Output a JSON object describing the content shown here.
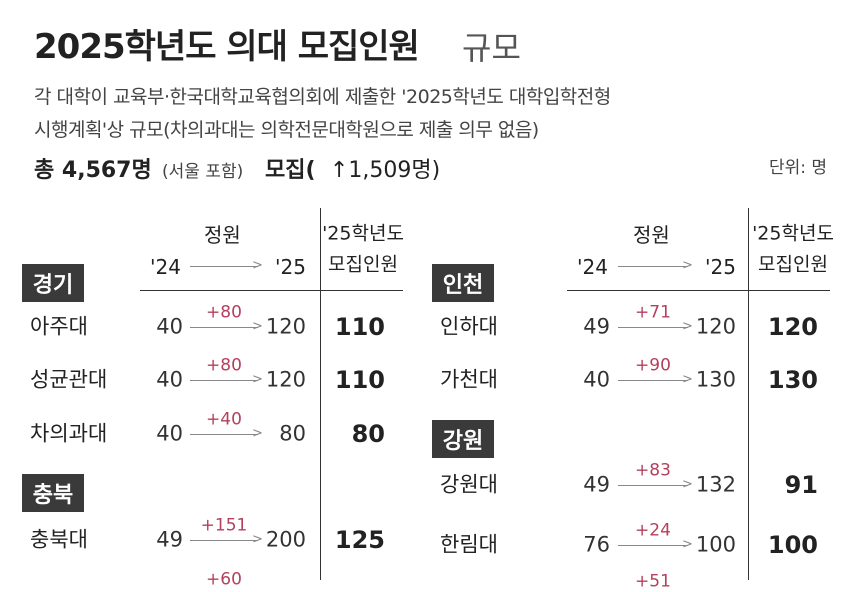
{
  "title": {
    "main": "2025학년도 의대 모집인원",
    "suffix": "규모"
  },
  "description": [
    "각 대학이 교육부·한국대학교육협의회에 제출한 '2025학년도 대학입학전형",
    "시행계획'상 규모(차의과대는 의학전문대학원으로 제출 의무 없음)"
  ],
  "summary": {
    "total": "총 4,567명",
    "note": "(서울 포함)",
    "label": "모집(",
    "increase": "↑1,509명)"
  },
  "unit": "단위: 명",
  "tables": [
    {
      "header": {
        "capacity": "정원",
        "from": "'24",
        "to": "'25",
        "quota": [
          "'25학년도",
          "모집인원"
        ]
      },
      "groups": [
        {
          "region": "경기",
          "rows": [
            {
              "school": "아주대",
              "from": 40,
              "change": "+80",
              "to": 120,
              "quota": 110
            },
            {
              "school": "성균관대",
              "from": 40,
              "change": "+80",
              "to": 120,
              "quota": 110
            },
            {
              "school": "차의과대",
              "from": 40,
              "change": "+40",
              "to": 80,
              "quota": 80
            }
          ]
        },
        {
          "region": "충북",
          "rows": [
            {
              "school": "충북대",
              "from": 49,
              "change": "+151",
              "to": 200,
              "quota": 125
            }
          ]
        }
      ],
      "cut_off_change": "+60"
    },
    {
      "header": {
        "capacity": "정원",
        "from": "'24",
        "to": "'25",
        "quota": [
          "'25학년도",
          "모집인원"
        ]
      },
      "groups": [
        {
          "region": "인천",
          "rows": [
            {
              "school": "인하대",
              "from": 49,
              "change": "+71",
              "to": 120,
              "quota": 120
            },
            {
              "school": "가천대",
              "from": 40,
              "change": "+90",
              "to": 130,
              "quota": 130
            }
          ]
        },
        {
          "region": "강원",
          "rows": [
            {
              "school": "강원대",
              "from": 49,
              "change": "+83",
              "to": 132,
              "quota": 91
            },
            {
              "school": "한림대",
              "from": 76,
              "change": "+24",
              "to": 100,
              "quota": 100
            }
          ]
        }
      ],
      "cut_off_change": "+51"
    }
  ]
}
